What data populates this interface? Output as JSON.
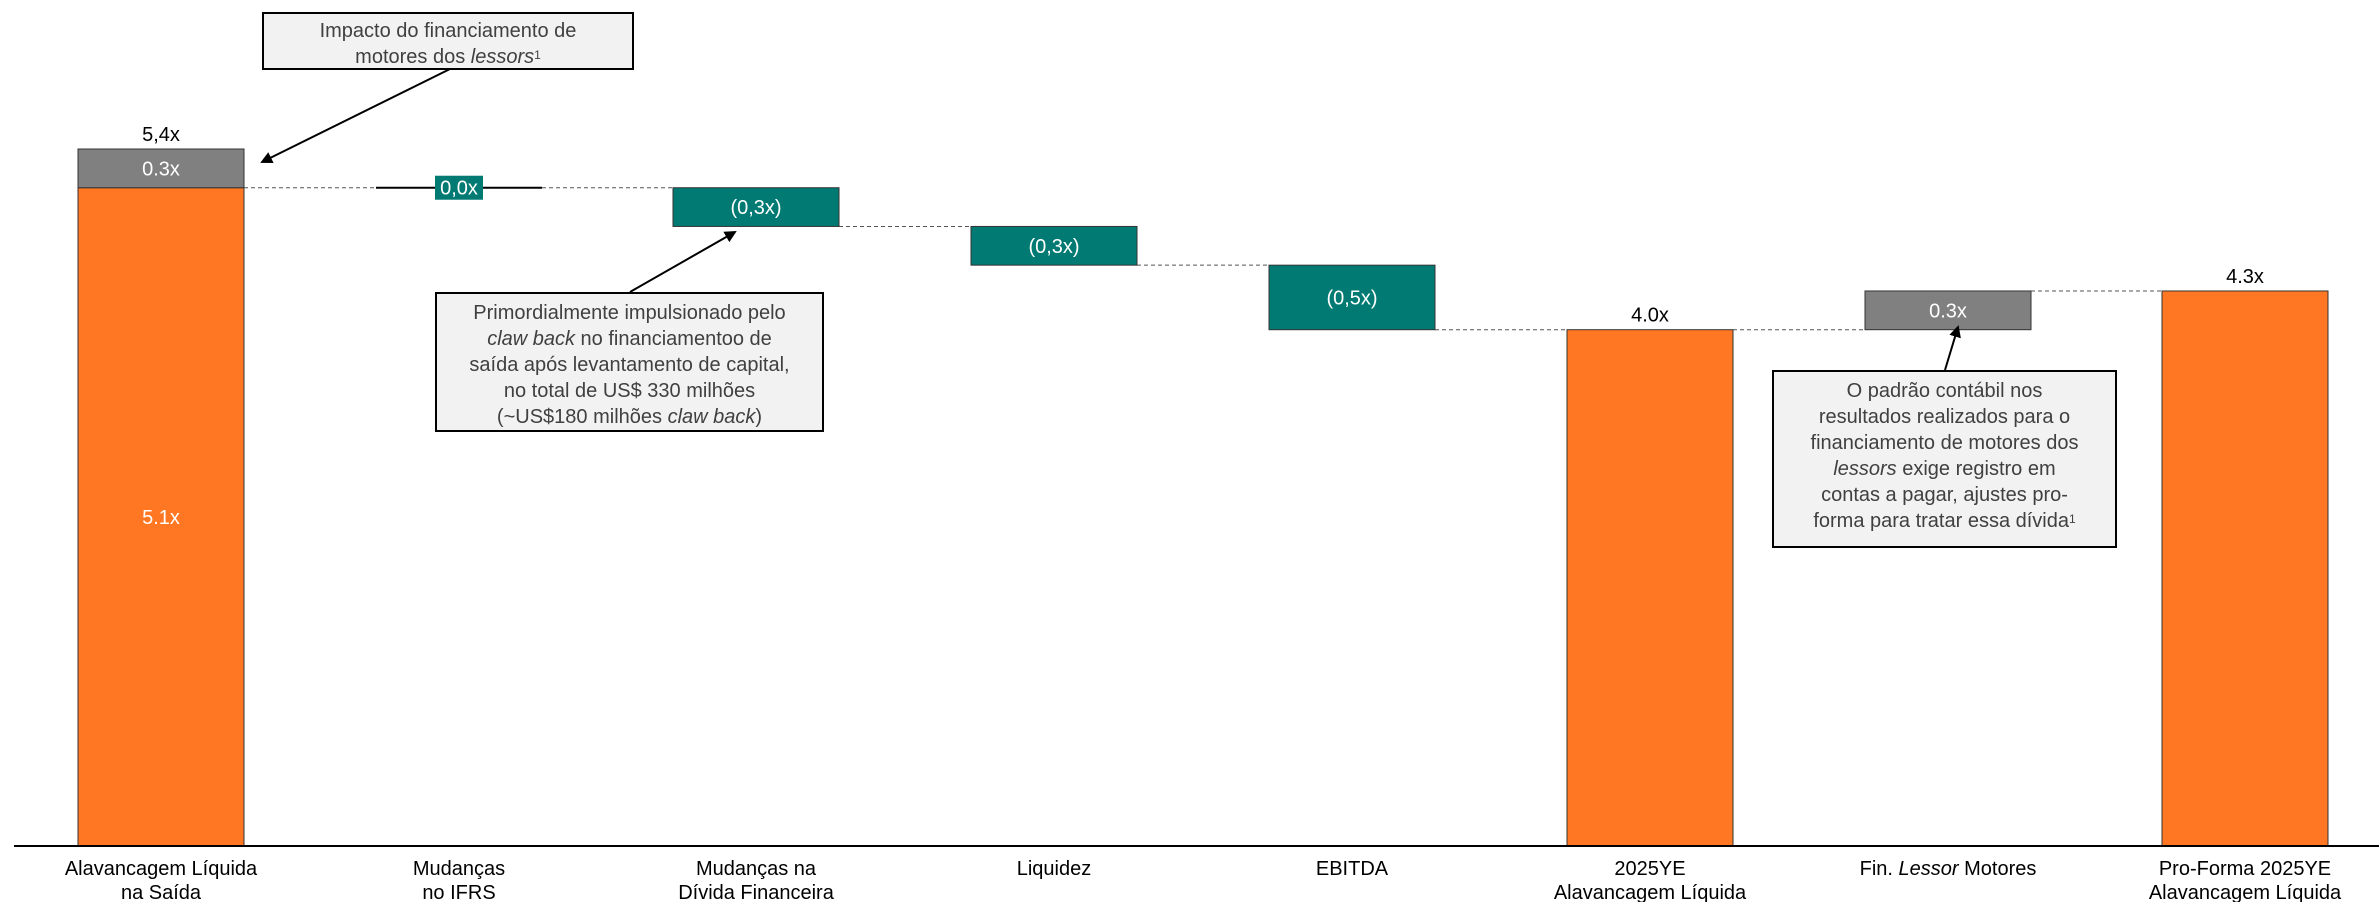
{
  "chart_data": {
    "type": "bar",
    "subtype": "waterfall",
    "categories": [
      [
        "Alavancagem Líquida",
        "na Saída"
      ],
      [
        "Mudanças",
        "no IFRS"
      ],
      [
        "Mudanças na",
        "Dívida Financeira"
      ],
      [
        "Liquidez"
      ],
      [
        "EBITDA"
      ],
      [
        "2025YE",
        "Alavancagem Líquida"
      ],
      [
        "Fin. ",
        "Lessor",
        " Motores"
      ],
      [
        "Pro-Forma 2025YE",
        "Alavancagem Líquida"
      ]
    ],
    "bars": [
      {
        "kind": "total",
        "segments": [
          {
            "value": 5.1,
            "label": "5.1x",
            "color": "orange"
          },
          {
            "value": 0.3,
            "label": "0.3x",
            "color": "gray"
          }
        ],
        "total_label": "5,4x"
      },
      {
        "kind": "delta",
        "from": 5.1,
        "value": 0.0,
        "label": "0,0x",
        "color": "teal"
      },
      {
        "kind": "delta",
        "from": 5.1,
        "value": -0.3,
        "label": "(0,3x)",
        "color": "teal"
      },
      {
        "kind": "delta",
        "from": 4.8,
        "value": -0.3,
        "label": "(0,3x)",
        "color": "teal"
      },
      {
        "kind": "delta",
        "from": 4.5,
        "value": -0.5,
        "label": "(0,5x)",
        "color": "teal"
      },
      {
        "kind": "total",
        "segments": [
          {
            "value": 4.0,
            "label": "",
            "color": "orange"
          }
        ],
        "total_label": "4.0x"
      },
      {
        "kind": "delta",
        "from": 4.0,
        "value": 0.3,
        "label": "0.3x",
        "color": "gray"
      },
      {
        "kind": "total",
        "segments": [
          {
            "value": 4.3,
            "label": "",
            "color": "orange"
          }
        ],
        "total_label": "4.3x"
      }
    ],
    "ylim": [
      0,
      5.4
    ],
    "grid": false,
    "legend": "none",
    "colors": {
      "orange": "#ff7722",
      "gray": "#808080",
      "teal": "#007a72",
      "baseline": "#000000"
    }
  },
  "callouts": {
    "top": {
      "line1": "Impacto do financiamento de",
      "line2_pre": "motores dos ",
      "line2_italic": "lessors",
      "line2_sup": "1"
    },
    "middle": {
      "line1": "Primordialmente impulsionado pelo",
      "line2_italic": "claw back",
      "line2_post": " no financiamentoo de",
      "line3": "saída após levantamento de capital,",
      "line4": "no total de US$ 330 milhões",
      "line5_pre": "(~US$180 milhões ",
      "line5_italic": "claw back",
      "line5_post": ")"
    },
    "right": {
      "line1": "O padrão contábil nos",
      "line2": "resultados realizados para o",
      "line3": "financiamento de motores dos",
      "line4_italic": "lessors",
      "line4_post": " exige registro em",
      "line5": "contas a pagar, ajustes pro-",
      "line6_pre": "forma para tratar essa dívida",
      "line6_sup": "1"
    }
  }
}
